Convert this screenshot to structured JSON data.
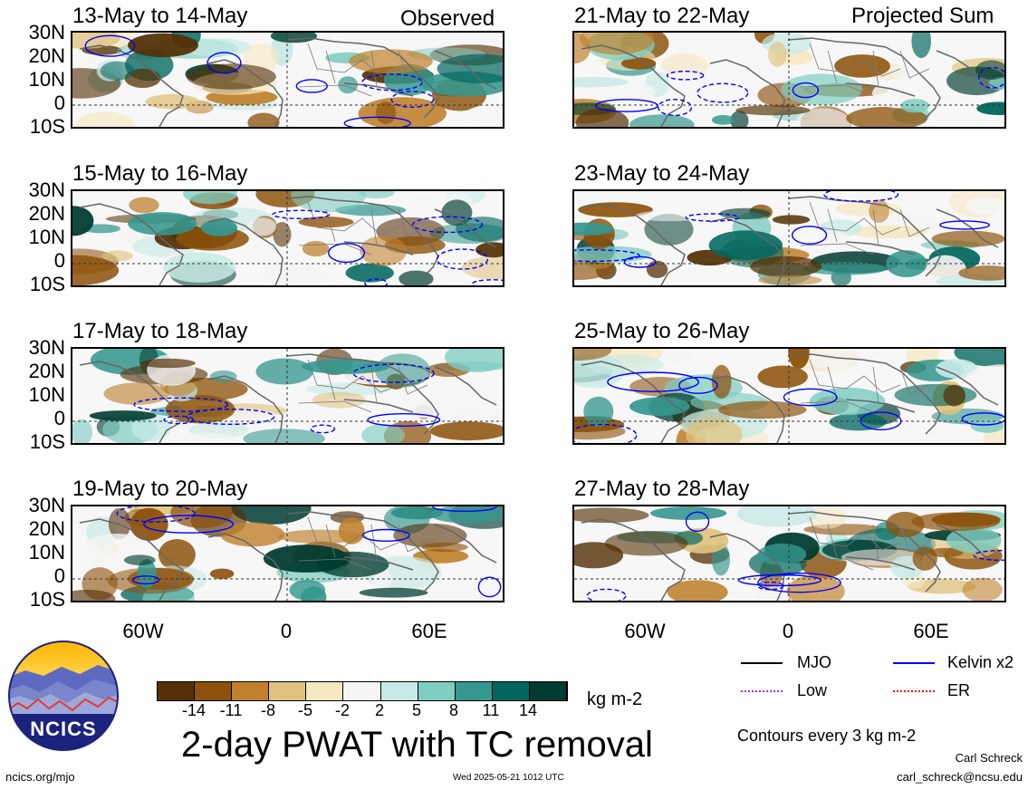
{
  "panels_left": [
    {
      "title": "13-May to 14-May",
      "label": "Observed"
    },
    {
      "title": "15-May to 16-May",
      "label": ""
    },
    {
      "title": "17-May to 18-May",
      "label": ""
    },
    {
      "title": "19-May to 20-May",
      "label": ""
    }
  ],
  "panels_right": [
    {
      "title": "21-May to 22-May",
      "label": "Projected Sum"
    },
    {
      "title": "23-May to 24-May",
      "label": ""
    },
    {
      "title": "25-May to 26-May",
      "label": ""
    },
    {
      "title": "27-May to 28-May",
      "label": ""
    }
  ],
  "lat_labels": [
    "30N",
    "20N",
    "10N",
    "0",
    "10S"
  ],
  "lon_labels": [
    "60W",
    "0",
    "60E"
  ],
  "colorbar": {
    "ticks": [
      "-14",
      "-11",
      "-8",
      "-5",
      "-2",
      "2",
      "5",
      "8",
      "11",
      "14"
    ],
    "colors": [
      "#543005",
      "#8c510a",
      "#bf812d",
      "#dfc27d",
      "#f6e8c3",
      "#f5f5f5",
      "#c7eae5",
      "#80cdc1",
      "#35978f",
      "#01665e",
      "#003c30"
    ],
    "units": "kg m-2"
  },
  "main_title": "2-day PWAT with TC removal",
  "legend": {
    "items": [
      {
        "name": "MJO",
        "color": "#000000"
      },
      {
        "name": "Kelvin x2",
        "color": "#0000ff"
      },
      {
        "name": "Low",
        "color": "#9933ff"
      },
      {
        "name": "ER",
        "color": "#ff0000"
      }
    ],
    "contour_note": "Contours every 3 kg m-2"
  },
  "logo": {
    "text": "NCICS"
  },
  "footer": {
    "url": "ncics.org/mjo",
    "timestamp": "Wed 2025-05-21 1012 UTC",
    "author": "Carl Schreck",
    "email": "carl_schreck@ncsu.edu"
  }
}
